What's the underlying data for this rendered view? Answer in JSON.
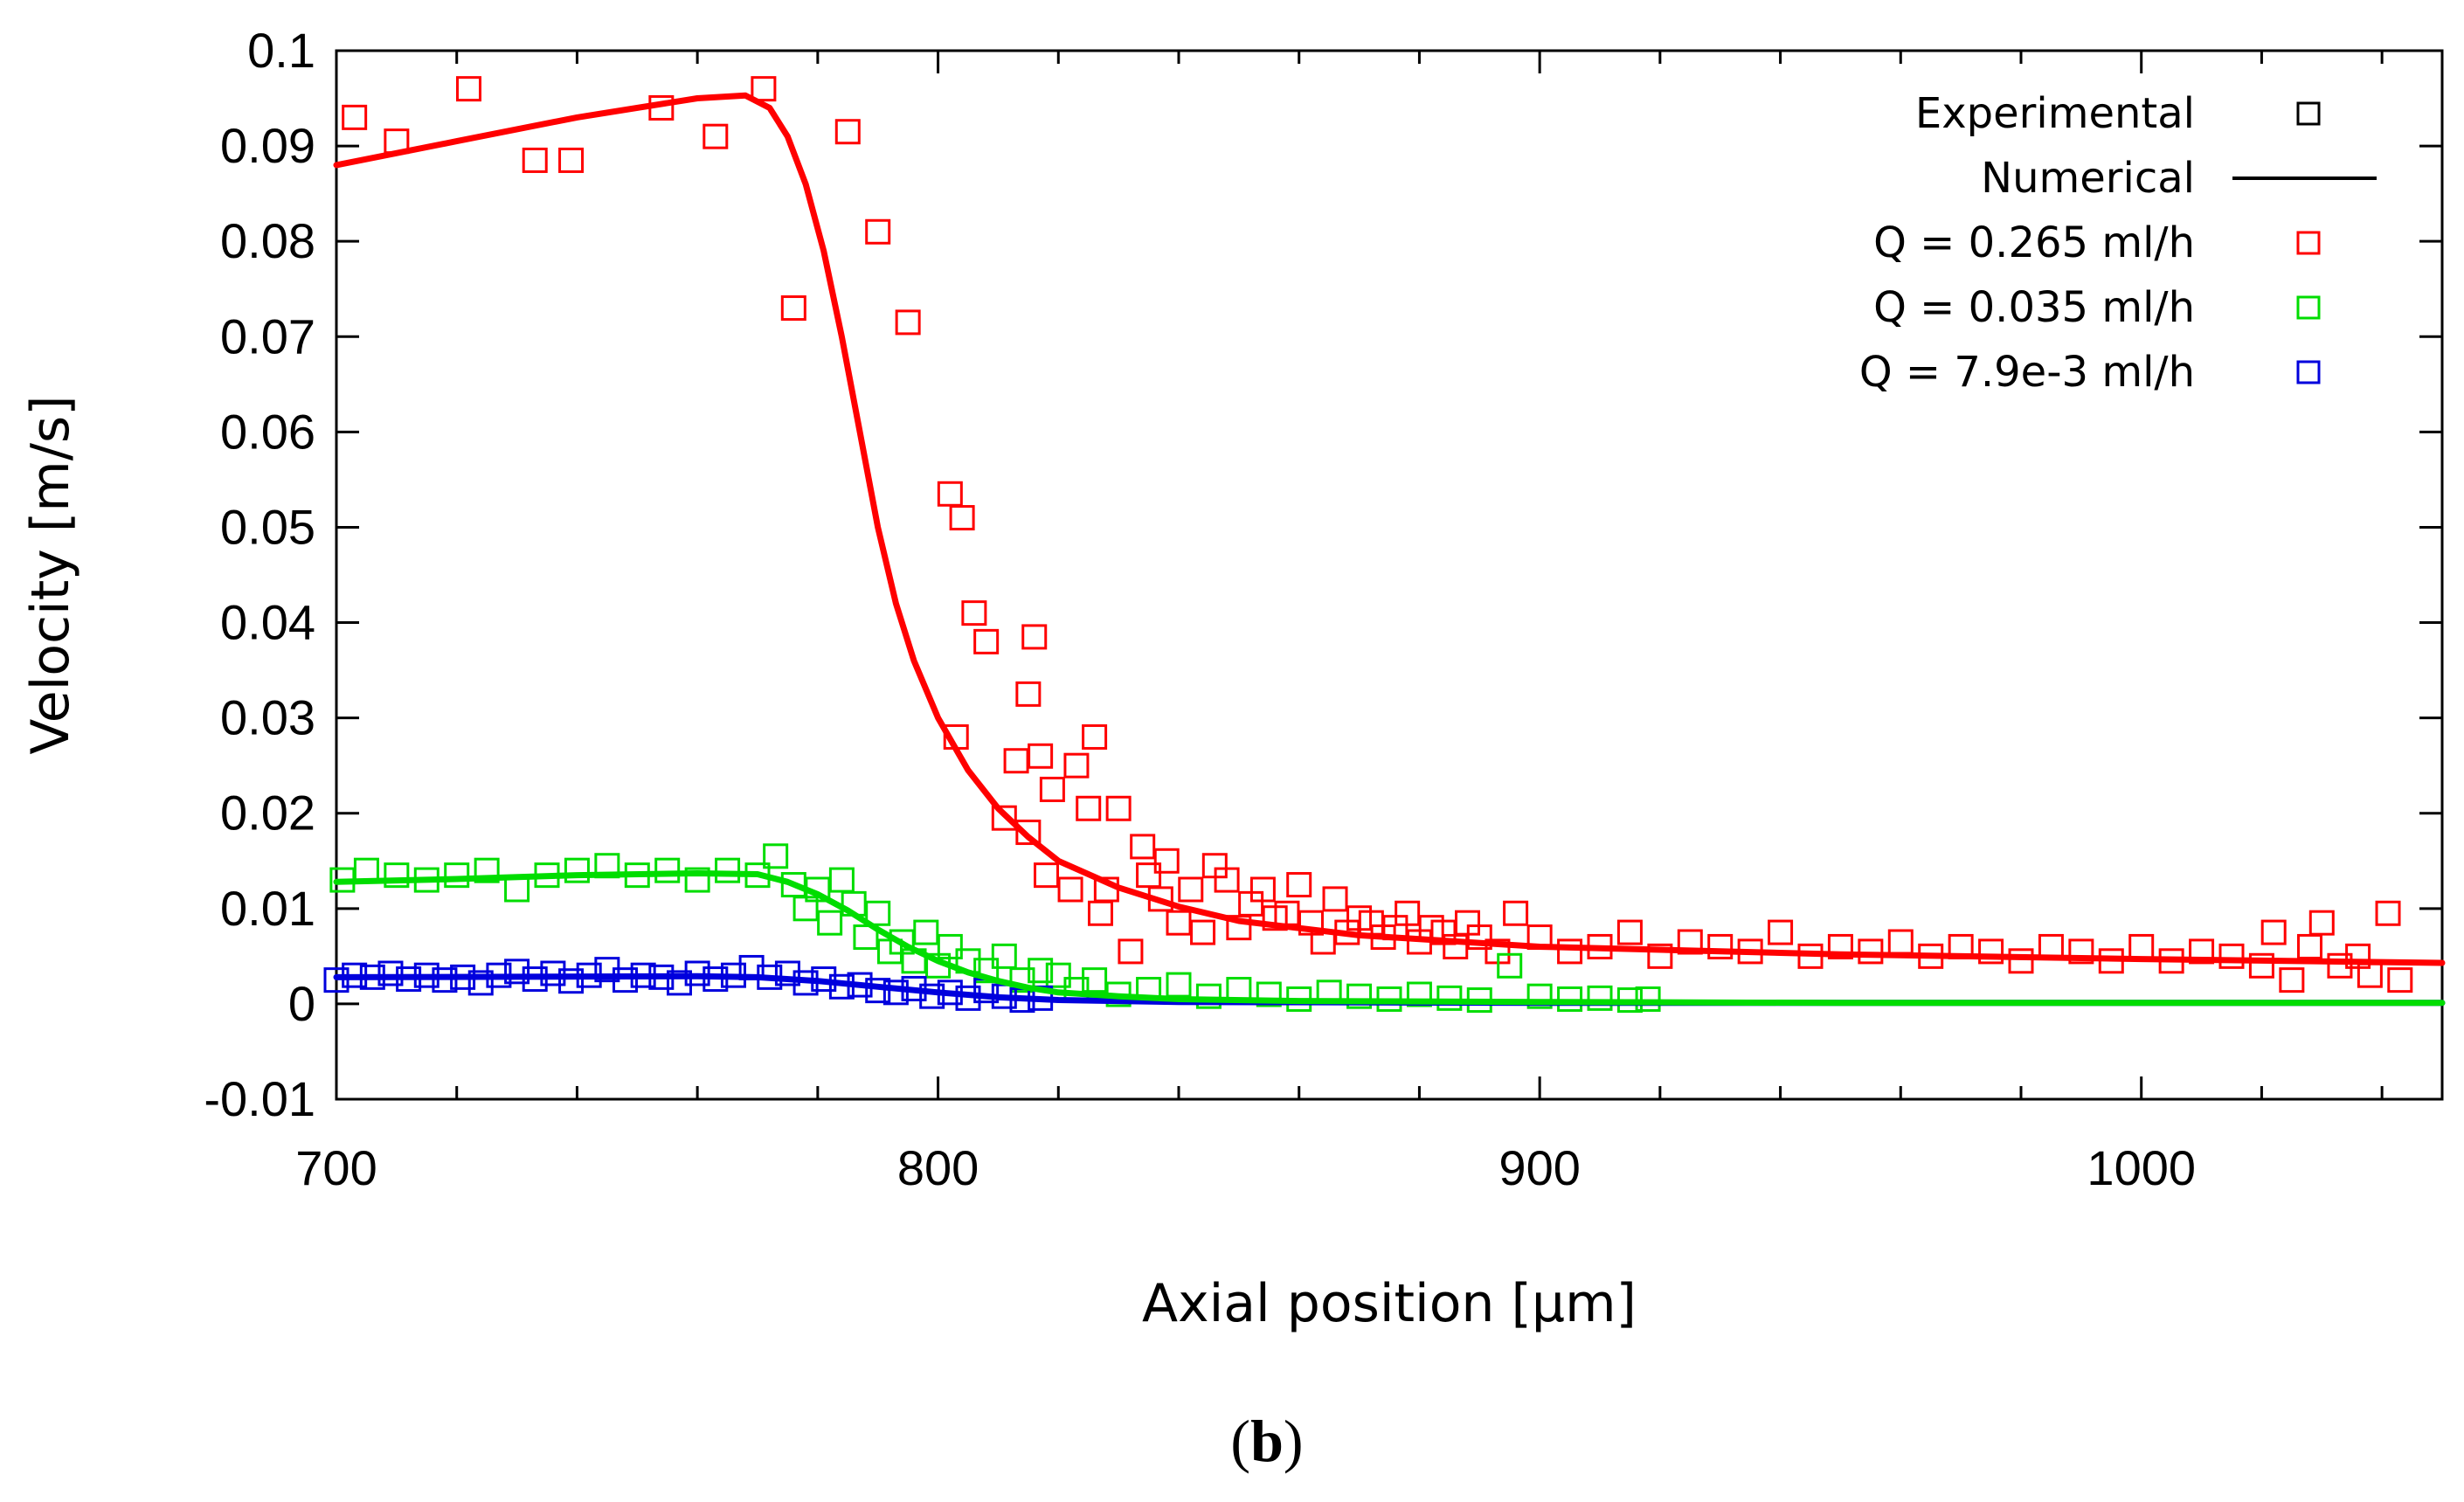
{
  "caption": {
    "open": "(",
    "letter": "b",
    "close": ")"
  },
  "chart_data": {
    "type": "scatter",
    "title": "",
    "xlabel": "Axial position [µm]",
    "ylabel": "Velocity [m/s]",
    "xlim": [
      700,
      1050
    ],
    "ylim": [
      -0.01,
      0.1
    ],
    "x_ticks": [
      700,
      800,
      900,
      1000
    ],
    "x_tick_labels": [
      "700",
      "800",
      "900",
      "1000"
    ],
    "y_ticks": [
      -0.01,
      0,
      0.01,
      0.02,
      0.03,
      0.04,
      0.05,
      0.06,
      0.07,
      0.08,
      0.09,
      0.1
    ],
    "y_tick_labels": [
      "-0.01",
      "0",
      "0.01",
      "0.02",
      "0.03",
      "0.04",
      "0.05",
      "0.06",
      "0.07",
      "0.08",
      "0.09",
      "0.1"
    ],
    "legend": {
      "placement": "top-right",
      "entries": [
        {
          "label": "Experimental",
          "marker": "square",
          "color": "#000000"
        },
        {
          "label": "Numerical",
          "marker": "line",
          "color": "#000000"
        },
        {
          "label": "Q = 0.265 ml/h",
          "marker": "square",
          "color": "#ff0000"
        },
        {
          "label": "Q = 0.035 ml/h",
          "marker": "square",
          "color": "#00dd00"
        },
        {
          "label": "Q = 7.9e-3 ml/h",
          "marker": "square",
          "color": "#0000dd"
        }
      ]
    },
    "series": [
      {
        "name": "Q = 0.265 ml/h",
        "color": "#ff0000",
        "experimental": {
          "x": [
            703,
            710,
            722,
            733,
            739,
            754,
            763,
            771,
            776,
            785,
            790,
            795,
            802,
            804,
            806,
            808,
            803,
            811,
            813,
            815,
            816,
            817,
            815,
            818,
            819,
            822,
            823,
            825,
            826,
            827,
            828,
            830,
            832,
            834,
            835,
            837,
            838,
            840,
            842,
            844,
            846,
            848,
            850,
            852,
            854,
            856,
            858,
            860,
            862,
            864,
            866,
            868,
            870,
            872,
            874,
            876,
            878,
            880,
            882,
            884,
            886,
            888,
            890,
            893,
            896,
            900,
            905,
            910,
            915,
            920,
            925,
            930,
            935,
            940,
            945,
            950,
            955,
            960,
            965,
            970,
            975,
            980,
            985,
            990,
            995,
            1000,
            1005,
            1010,
            1015,
            1020,
            1022,
            1025,
            1028,
            1030,
            1033,
            1036,
            1038,
            1041,
            1043
          ],
          "y": [
            0.093,
            0.0905,
            0.096,
            0.0885,
            0.0885,
            0.094,
            0.091,
            0.096,
            0.073,
            0.0915,
            0.081,
            0.0715,
            0.0535,
            0.051,
            0.041,
            0.038,
            0.028,
            0.0195,
            0.0255,
            0.018,
            0.0385,
            0.026,
            0.0325,
            0.0135,
            0.0225,
            0.012,
            0.025,
            0.0205,
            0.028,
            0.0095,
            0.012,
            0.0205,
            0.0055,
            0.0165,
            0.0135,
            0.011,
            0.015,
            0.0085,
            0.012,
            0.0075,
            0.0145,
            0.013,
            0.008,
            0.0105,
            0.012,
            0.009,
            0.0095,
            0.0125,
            0.0085,
            0.0065,
            0.011,
            0.0075,
            0.009,
            0.0085,
            0.007,
            0.008,
            0.0095,
            0.0065,
            0.008,
            0.0075,
            0.006,
            0.0085,
            0.007,
            0.0055,
            0.0095,
            0.007,
            0.0055,
            0.006,
            0.0075,
            0.005,
            0.0065,
            0.006,
            0.0055,
            0.0075,
            0.005,
            0.006,
            0.0055,
            0.0065,
            0.005,
            0.006,
            0.0055,
            0.0045,
            0.006,
            0.0055,
            0.0045,
            0.006,
            0.0045,
            0.0055,
            0.005,
            0.004,
            0.0075,
            0.0025,
            0.006,
            0.0085,
            0.004,
            0.005,
            0.003,
            0.0095,
            0.0025
          ]
        },
        "numerical": {
          "x": [
            700,
            720,
            740,
            760,
            768,
            772,
            775,
            778,
            781,
            784,
            787,
            790,
            793,
            796,
            800,
            805,
            810,
            815,
            820,
            830,
            840,
            850,
            870,
            900,
            950,
            1000,
            1050
          ],
          "y": [
            0.088,
            0.0905,
            0.093,
            0.095,
            0.0953,
            0.094,
            0.091,
            0.086,
            0.079,
            0.07,
            0.06,
            0.05,
            0.042,
            0.036,
            0.03,
            0.0245,
            0.0205,
            0.0175,
            0.015,
            0.0122,
            0.0102,
            0.0087,
            0.0072,
            0.006,
            0.0052,
            0.0047,
            0.0043
          ]
        }
      },
      {
        "name": "Q = 0.035 ml/h",
        "color": "#00dd00",
        "experimental": {
          "x": [
            701,
            705,
            710,
            715,
            720,
            725,
            730,
            735,
            740,
            745,
            750,
            755,
            760,
            765,
            770,
            773,
            776,
            778,
            780,
            782,
            784,
            786,
            788,
            790,
            792,
            794,
            796,
            798,
            800,
            802,
            805,
            808,
            811,
            814,
            817,
            820,
            823,
            826,
            830,
            835,
            840,
            845,
            850,
            855,
            860,
            865,
            870,
            875,
            880,
            885,
            890,
            895,
            900,
            905,
            910,
            915,
            918
          ],
          "y": [
            0.013,
            0.014,
            0.0135,
            0.013,
            0.0135,
            0.014,
            0.012,
            0.0135,
            0.014,
            0.0145,
            0.0135,
            0.014,
            0.013,
            0.014,
            0.0135,
            0.0155,
            0.0125,
            0.01,
            0.012,
            0.0085,
            0.013,
            0.0105,
            0.007,
            0.0095,
            0.0055,
            0.0065,
            0.0045,
            0.0075,
            0.004,
            0.006,
            0.0045,
            0.0035,
            0.005,
            0.0025,
            0.0035,
            0.003,
            0.0015,
            0.0025,
            0.001,
            0.0015,
            0.002,
            0.0008,
            0.0015,
            0.001,
            0.0005,
            0.0012,
            0.0008,
            0.0005,
            0.001,
            0.0006,
            0.0004,
            0.004,
            0.0008,
            0.0005,
            0.0006,
            0.0004,
            0.0005
          ]
        },
        "numerical": {
          "x": [
            700,
            720,
            740,
            760,
            770,
            775,
            780,
            785,
            790,
            795,
            800,
            805,
            810,
            815,
            820,
            830,
            840,
            860,
            900,
            950,
            1000,
            1050
          ],
          "y": [
            0.0128,
            0.0131,
            0.0135,
            0.0137,
            0.0136,
            0.0128,
            0.0115,
            0.0098,
            0.0078,
            0.006,
            0.0045,
            0.0033,
            0.0024,
            0.0017,
            0.0012,
            0.0008,
            0.0005,
            0.0003,
            0.0002,
            0.0001,
            0.0001,
            0.0001
          ]
        }
      },
      {
        "name": "Q = 7.9e-3 ml/h",
        "color": "#0000dd",
        "experimental": {
          "x": [
            700,
            703,
            706,
            709,
            712,
            715,
            718,
            721,
            724,
            727,
            730,
            733,
            736,
            739,
            742,
            745,
            748,
            751,
            754,
            757,
            760,
            763,
            766,
            769,
            772,
            775,
            778,
            781,
            784,
            787,
            790,
            793,
            796,
            799,
            802,
            805,
            808,
            811,
            814,
            817
          ],
          "y": [
            0.0025,
            0.003,
            0.0028,
            0.0032,
            0.0026,
            0.003,
            0.0025,
            0.0028,
            0.0022,
            0.003,
            0.0034,
            0.0026,
            0.0032,
            0.0024,
            0.003,
            0.0036,
            0.0025,
            0.003,
            0.0028,
            0.0022,
            0.0032,
            0.0026,
            0.003,
            0.0038,
            0.0028,
            0.0032,
            0.0022,
            0.0026,
            0.0018,
            0.002,
            0.0014,
            0.0012,
            0.0016,
            0.0008,
            0.0012,
            0.0006,
            0.0014,
            0.0008,
            0.0004,
            0.0006
          ]
        },
        "numerical": {
          "x": [
            700,
            760,
            770,
            780,
            790,
            800,
            810,
            820,
            840,
            900,
            1050
          ],
          "y": [
            0.0028,
            0.0029,
            0.0028,
            0.0024,
            0.0018,
            0.0012,
            0.0007,
            0.0004,
            0.0002,
            0.0001,
            0.0001
          ]
        }
      }
    ]
  }
}
